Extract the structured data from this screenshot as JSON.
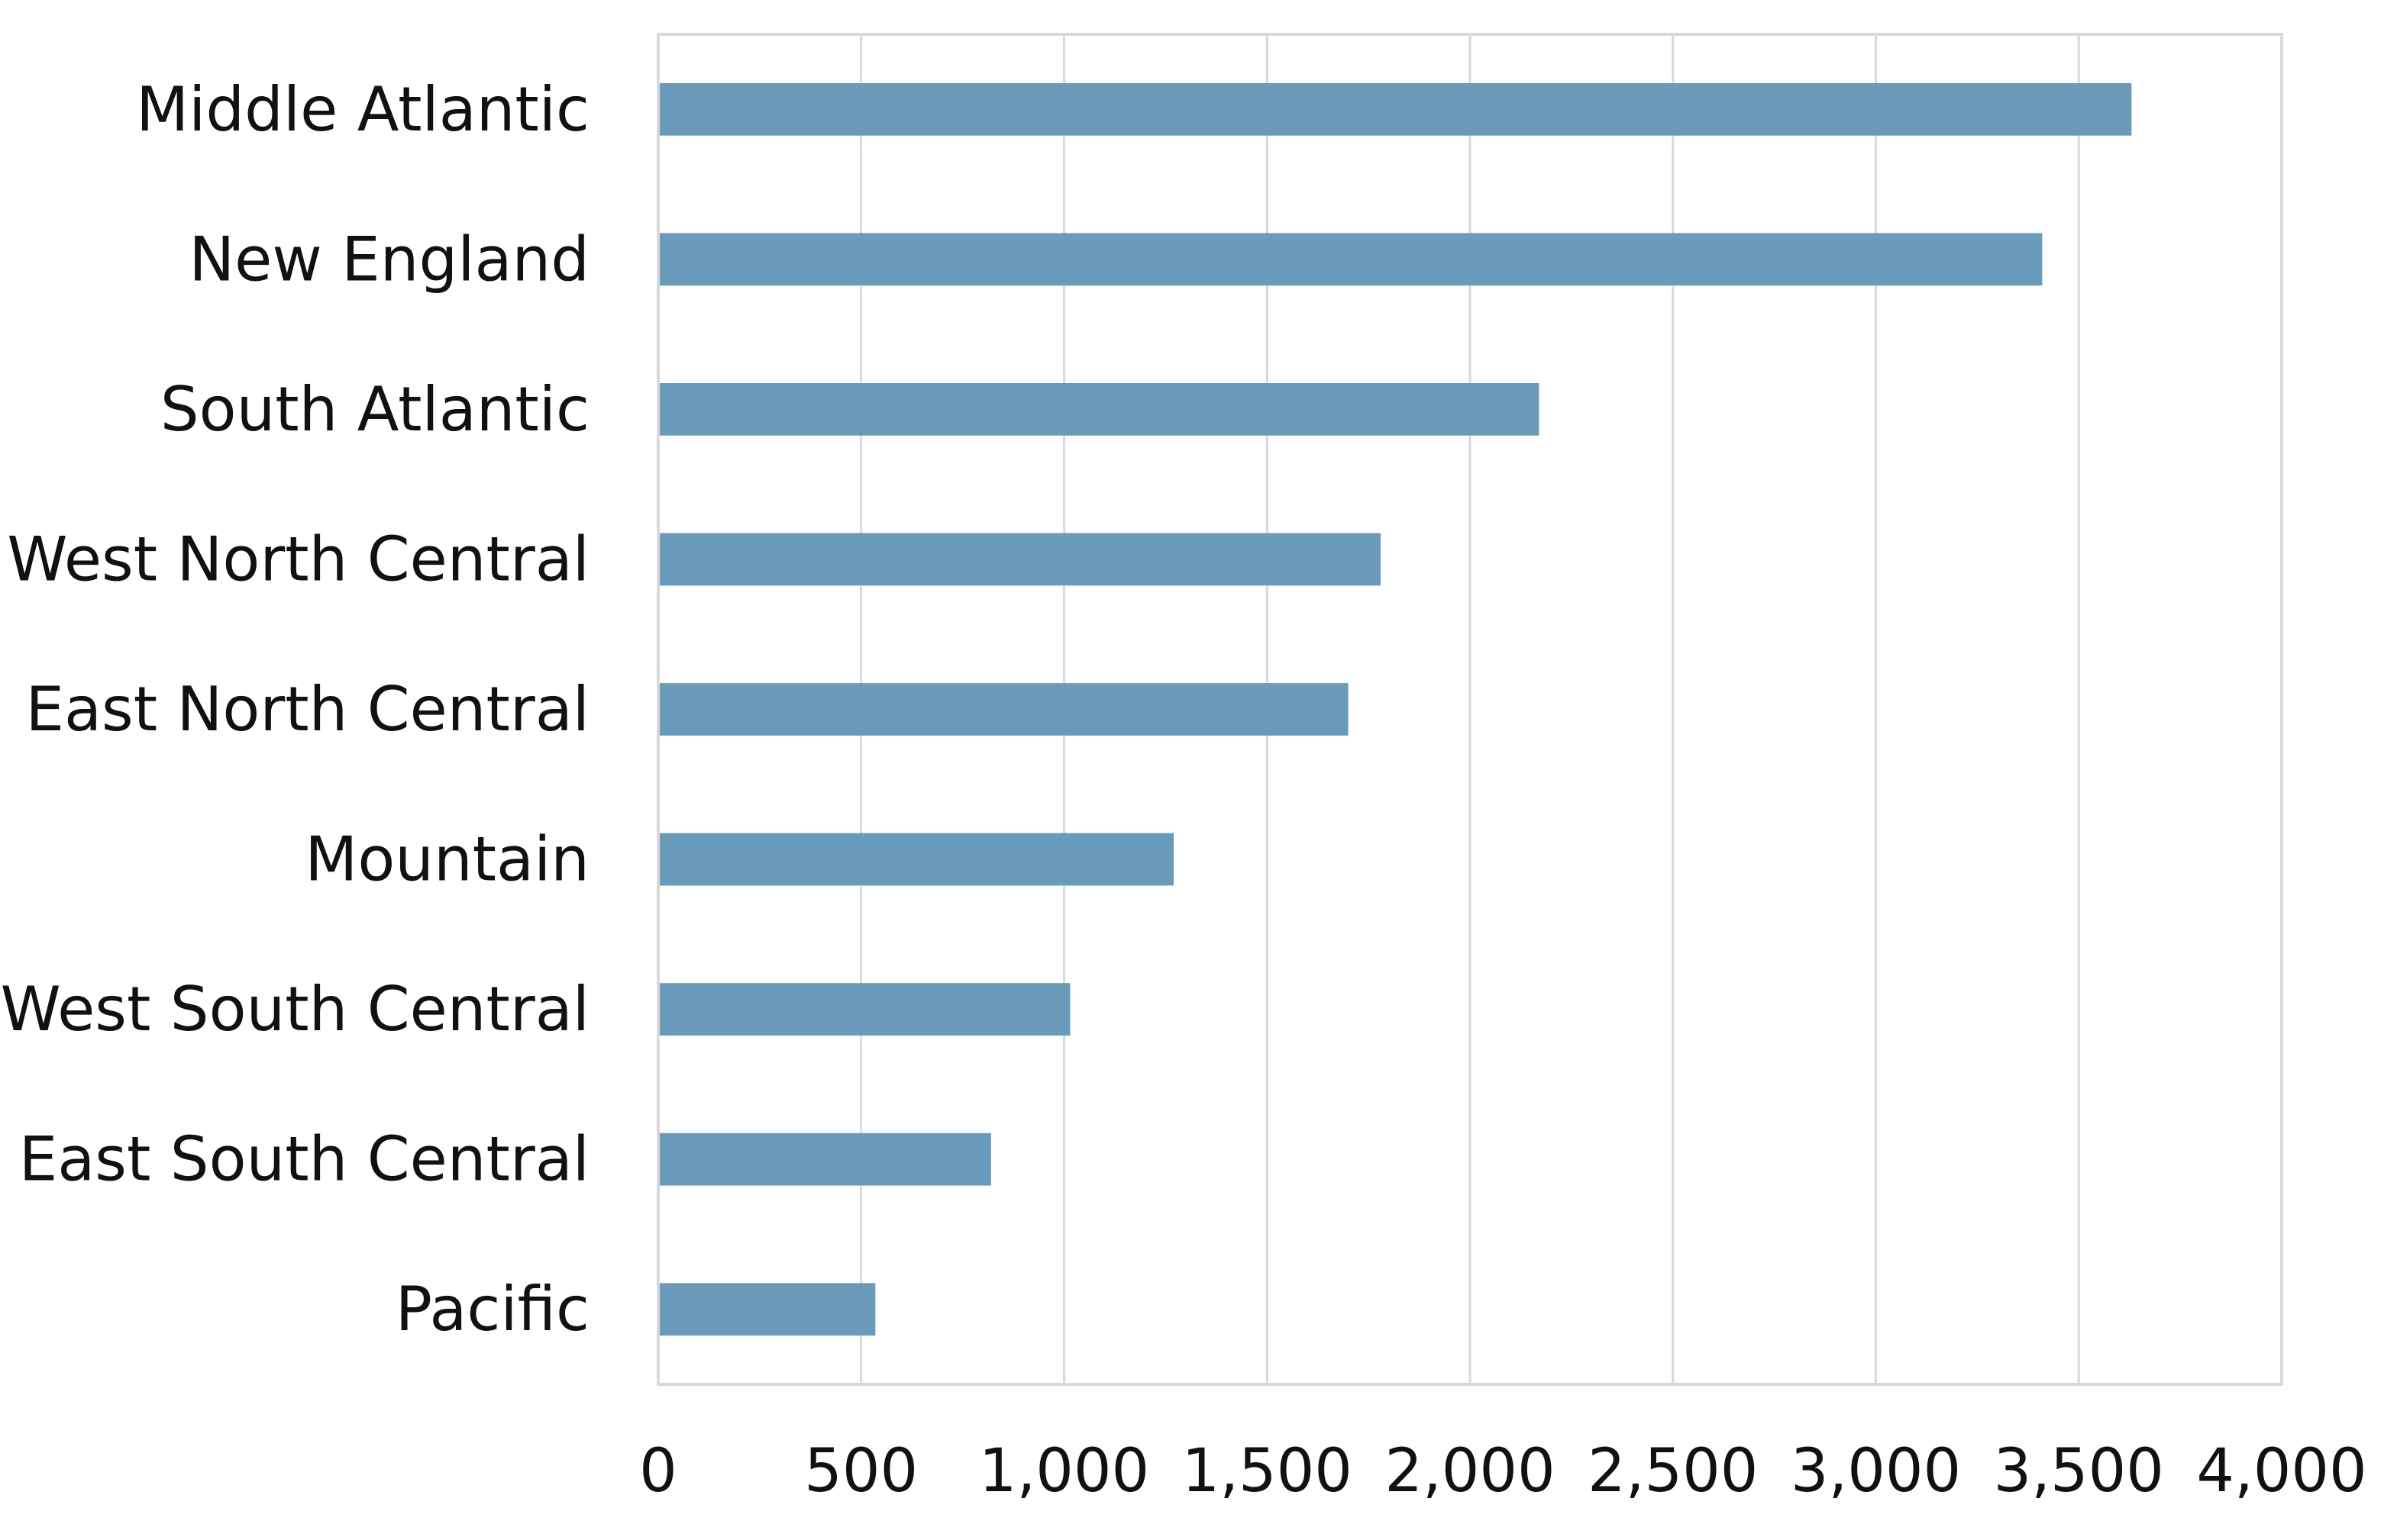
{
  "chart_data": {
    "type": "bar",
    "orientation": "horizontal",
    "title": "",
    "xlabel": "",
    "ylabel": "",
    "categories": [
      "Middle Atlantic",
      "New England",
      "South Atlantic",
      "West North Central",
      "East North Central",
      "Mountain",
      "West South Central",
      "East South Central",
      "Pacific"
    ],
    "values": [
      3630,
      3410,
      2170,
      1780,
      1700,
      1270,
      1015,
      820,
      535
    ],
    "xlim": [
      0,
      4000
    ],
    "xticks": [
      0,
      500,
      1000,
      1500,
      2000,
      2500,
      3000,
      3500,
      4000
    ],
    "xtick_labels": [
      "0",
      "500",
      "1,000",
      "1,500",
      "2,000",
      "2,500",
      "3,000",
      "3,500",
      "4,000"
    ],
    "grid": "vertical",
    "legend": "none",
    "bar_color": "#6b9bba"
  }
}
